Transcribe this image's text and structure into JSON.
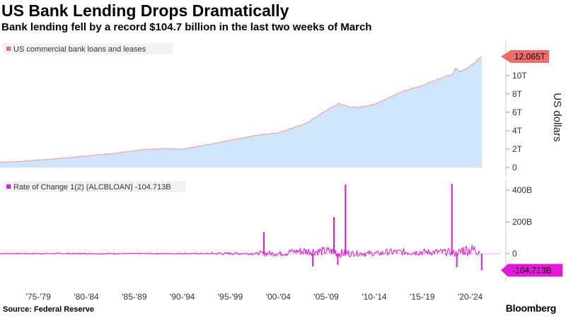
{
  "header": {
    "title": "US Bank Lending Drops Dramatically",
    "subtitle": "Bank lending fell by a record $104.7 billion in the last two weeks of March"
  },
  "footer": {
    "source": "Source: Federal Reserve",
    "brand": "Bloomberg"
  },
  "chart_data": [
    {
      "type": "area",
      "legend": "US commercial bank loans and leases",
      "ylabel": "US dollars",
      "ylim": [
        0,
        12.5
      ],
      "yticks": [
        "0",
        "2T",
        "4T",
        "6T",
        "8T",
        "10T"
      ],
      "callout": "12.065T",
      "x": [
        1973,
        1975,
        1980,
        1985,
        1988,
        1990,
        1992,
        1995,
        2000,
        2002,
        2005,
        2007,
        2008.3,
        2009.5,
        2010.5,
        2012,
        2015,
        2017,
        2019,
        2020.2,
        2020.5,
        2021,
        2022,
        2023.2
      ],
      "values": [
        0.55,
        0.65,
        1.05,
        1.55,
        1.95,
        2.05,
        2.0,
        2.55,
        3.55,
        3.75,
        4.85,
        6.2,
        6.95,
        6.55,
        6.55,
        6.85,
        8.3,
        8.9,
        9.75,
        10.15,
        10.8,
        10.4,
        11.0,
        12.065
      ],
      "color": "#f2a6ad",
      "fill": "#cfe5fb"
    },
    {
      "type": "line",
      "legend": "Rate of Change 1(2) (ALCBLOAN) -104.713B",
      "ylim": [
        -140,
        460
      ],
      "yticks": [
        "0",
        "200B",
        "400B"
      ],
      "callout": "-104.713B",
      "color": "#e21ad8",
      "spikes": [
        {
          "x": 2000.5,
          "value": 135
        },
        {
          "x": 2007.8,
          "value": 230
        },
        {
          "x": 2009.0,
          "value": 435
        },
        {
          "x": 2005.6,
          "value": -80
        },
        {
          "x": 2008.2,
          "value": -70
        },
        {
          "x": 2020.1,
          "value": 440
        },
        {
          "x": 2020.6,
          "value": -85
        },
        {
          "x": 2023.2,
          "value": -104.713
        }
      ]
    }
  ],
  "x_axis": {
    "range": [
      1973,
      2025.2
    ],
    "ticks": [
      {
        "label": "'75-'79",
        "x": 1977
      },
      {
        "label": "'80-'84",
        "x": 1982
      },
      {
        "label": "'85-'89",
        "x": 1987
      },
      {
        "label": "'90-'94",
        "x": 1992
      },
      {
        "label": "'95-'99",
        "x": 1997
      },
      {
        "label": "'00-'04",
        "x": 2002
      },
      {
        "label": "'05-'09",
        "x": 2007
      },
      {
        "label": "'10-'14",
        "x": 2012
      },
      {
        "label": "'15-'19",
        "x": 2017
      },
      {
        "label": "'20-'24",
        "x": 2022
      }
    ]
  },
  "colors": {
    "callout_top": "#f26b6b",
    "callout_bottom": "#e21ad8",
    "axis": "#c8c8c8"
  }
}
